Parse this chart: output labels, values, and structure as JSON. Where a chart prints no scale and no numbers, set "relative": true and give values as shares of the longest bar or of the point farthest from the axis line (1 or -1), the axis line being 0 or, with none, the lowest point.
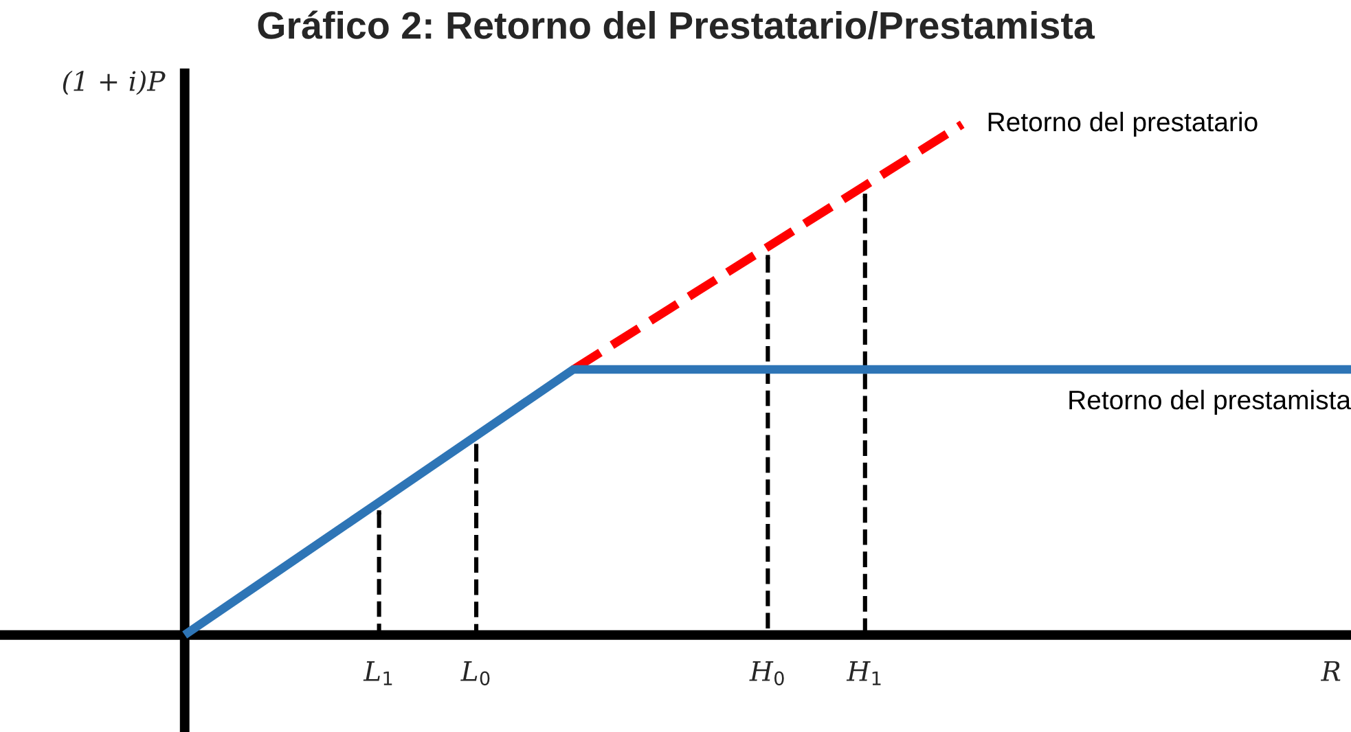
{
  "chart_data": {
    "type": "line",
    "title": "Gráfico 2: Retorno del Prestatario/Prestamista",
    "xlabel": "R",
    "ylabel": "(1 + i)P",
    "relative": true,
    "categories": [
      null,
      null,
      "L$_{1}$",
      "L$_{0}$",
      null,
      null,
      "H$_{0}$",
      "H$_{1}$",
      null,
      null,
      null,
      null,
      null
    ],
    "series": [
      {
        "name": "Retorno del prestatario",
        "color": "#ff0000",
        "values": [
          null,
          null,
          null,
          null,
          0.52,
          0.64,
          0.76,
          0.88,
          1.0,
          null,
          null,
          null,
          null
        ],
        "line_style": "dashed"
      },
      {
        "name": "Retorno del prestamista",
        "color": "#2e75b6",
        "values": [
          0,
          0.13,
          0.26,
          0.39,
          0.52,
          0.52,
          0.52,
          0.52,
          0.52,
          0.52,
          0.52,
          0.52,
          0.52
        ],
        "line_style": "solid"
      },
      {
        "type": "lollipop",
        "marker": "square",
        "color": "#000000",
        "values": [
          null,
          null,
          0.24,
          0.37,
          null,
          null,
          0.74,
          0.86,
          null,
          null,
          null,
          null,
          null
        ],
        "line_style": "dashed"
      }
    ],
    "legend": false,
    "marker": "none"
  }
}
